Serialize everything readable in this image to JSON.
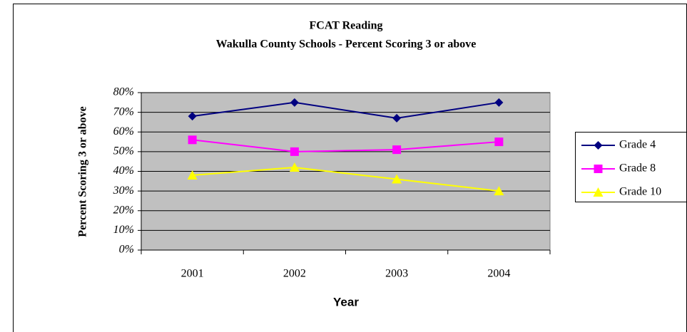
{
  "chart_data": {
    "type": "line",
    "title": "FCAT Reading",
    "subtitle": "Wakulla County Schools - Percent Scoring 3 or above",
    "x_label": "Year",
    "y_label": "Percent Scoring 3 or above",
    "categories": [
      "2001",
      "2002",
      "2003",
      "2004"
    ],
    "series": [
      {
        "name": "Grade 4",
        "color": "#000080",
        "marker": "diamond",
        "values": [
          68,
          75,
          67,
          75
        ]
      },
      {
        "name": "Grade 8",
        "color": "#ff00ff",
        "marker": "square",
        "values": [
          56,
          50,
          51,
          55
        ]
      },
      {
        "name": "Grade 10",
        "color": "#ffff00",
        "marker": "triangle",
        "values": [
          38,
          42,
          36,
          30
        ]
      }
    ],
    "ylim": [
      0,
      80
    ],
    "yticks": [
      {
        "value": 0,
        "label": "0%"
      },
      {
        "value": 10,
        "label": "10%"
      },
      {
        "value": 20,
        "label": "20%"
      },
      {
        "value": 30,
        "label": "30%"
      },
      {
        "value": 40,
        "label": "40%"
      },
      {
        "value": 50,
        "label": "50%"
      },
      {
        "value": 60,
        "label": "60%"
      },
      {
        "value": 70,
        "label": "70%"
      },
      {
        "value": 80,
        "label": "80%"
      }
    ],
    "grid": true,
    "plot_background": "#c0c0c0",
    "legend": "right"
  }
}
